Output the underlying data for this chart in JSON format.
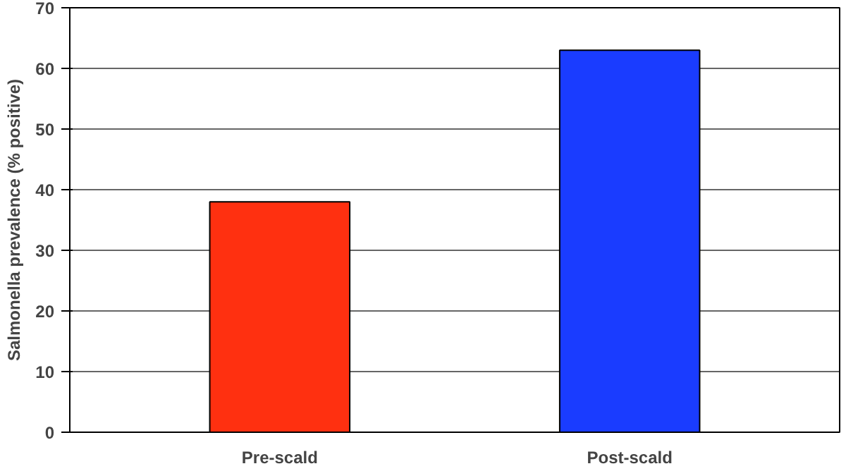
{
  "chart_data": {
    "type": "bar",
    "ylabel": "Salmonella prevalence (% positive)",
    "categories": [
      "Pre-scald",
      "Post-scald"
    ],
    "values": [
      38,
      63
    ],
    "colors": [
      "#ff3010",
      "#1a3cff"
    ],
    "ylim": [
      0,
      70
    ],
    "yticks": [
      0,
      10,
      20,
      30,
      40,
      50,
      60,
      70
    ],
    "grid": "y"
  }
}
